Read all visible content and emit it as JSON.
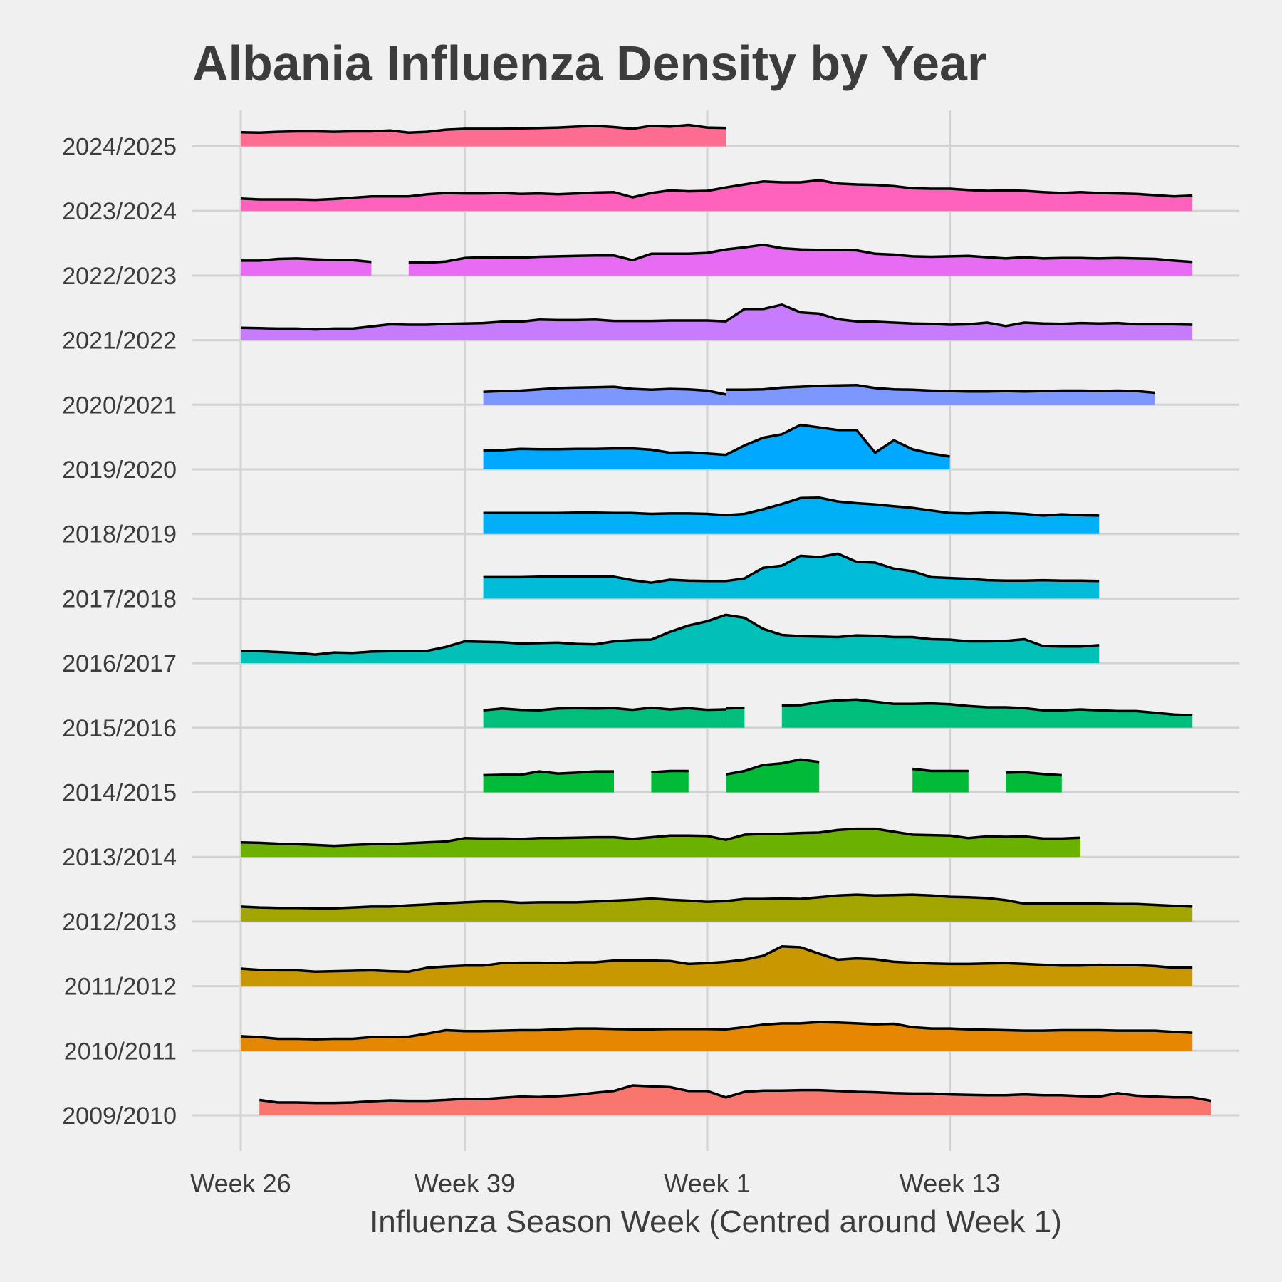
{
  "chart_data": {
    "type": "area",
    "subtype": "ridgeline",
    "title": "Albania Influenza Density by Year",
    "xlabel": "Influenza Season Week (Centred around Week 1)",
    "ylabel": "",
    "x_ticks": [
      {
        "label": "Week 26",
        "index": 0
      },
      {
        "label": "Week 39",
        "index": 12
      },
      {
        "label": "Week 1",
        "index": 25
      },
      {
        "label": "Week 13",
        "index": 38
      }
    ],
    "x_range": [
      0,
      51
    ],
    "grid": true,
    "legend": "none",
    "series": [
      {
        "name": "2009/2010",
        "color": "#f8766d",
        "segments": [
          {
            "start": 1,
            "values": [
              0.36,
              0.3,
              0.3,
              0.29,
              0.29,
              0.3,
              0.33,
              0.35,
              0.34,
              0.34,
              0.36,
              0.39,
              0.38,
              0.41,
              0.44,
              0.43,
              0.45,
              0.48,
              0.53,
              0.57,
              0.7,
              0.68,
              0.66,
              0.57,
              0.57,
              0.42,
              0.55,
              0.58,
              0.58,
              0.59,
              0.59,
              0.57,
              0.55,
              0.54,
              0.52,
              0.51,
              0.51,
              0.49,
              0.48,
              0.47,
              0.47,
              0.49,
              0.47,
              0.47,
              0.45,
              0.44,
              0.52,
              0.46,
              0.44,
              0.42,
              0.42,
              0.34
            ]
          }
        ]
      },
      {
        "name": "2010/2011",
        "color": "#e58700",
        "segments": [
          {
            "start": 0,
            "values": [
              0.34,
              0.32,
              0.28,
              0.28,
              0.27,
              0.28,
              0.28,
              0.32,
              0.32,
              0.33,
              0.4,
              0.48,
              0.46,
              0.46,
              0.47,
              0.48,
              0.48,
              0.5,
              0.52,
              0.52,
              0.51,
              0.5,
              0.5,
              0.51,
              0.51,
              0.51,
              0.5,
              0.55,
              0.61,
              0.64,
              0.64,
              0.67,
              0.66,
              0.64,
              0.62,
              0.63,
              0.55,
              0.52,
              0.52,
              0.5,
              0.49,
              0.48,
              0.47,
              0.47,
              0.48,
              0.48,
              0.48,
              0.47,
              0.47,
              0.47,
              0.44,
              0.42
            ]
          }
        ]
      },
      {
        "name": "2011/2012",
        "color": "#c99800",
        "segments": [
          {
            "start": 0,
            "values": [
              0.41,
              0.38,
              0.37,
              0.37,
              0.34,
              0.35,
              0.36,
              0.37,
              0.35,
              0.34,
              0.43,
              0.46,
              0.48,
              0.48,
              0.54,
              0.55,
              0.55,
              0.54,
              0.56,
              0.56,
              0.6,
              0.6,
              0.6,
              0.59,
              0.52,
              0.54,
              0.57,
              0.62,
              0.71,
              0.93,
              0.91,
              0.76,
              0.62,
              0.65,
              0.63,
              0.57,
              0.55,
              0.53,
              0.52,
              0.52,
              0.53,
              0.54,
              0.52,
              0.5,
              0.48,
              0.48,
              0.5,
              0.49,
              0.49,
              0.47,
              0.43,
              0.43
            ]
          }
        ]
      },
      {
        "name": "2012/2013",
        "color": "#a3a500",
        "segments": [
          {
            "start": 0,
            "values": [
              0.35,
              0.33,
              0.32,
              0.32,
              0.31,
              0.31,
              0.33,
              0.35,
              0.35,
              0.38,
              0.4,
              0.43,
              0.45,
              0.47,
              0.47,
              0.44,
              0.45,
              0.45,
              0.45,
              0.47,
              0.49,
              0.51,
              0.54,
              0.51,
              0.49,
              0.46,
              0.48,
              0.53,
              0.53,
              0.54,
              0.53,
              0.57,
              0.61,
              0.63,
              0.61,
              0.62,
              0.63,
              0.61,
              0.58,
              0.57,
              0.55,
              0.5,
              0.42,
              0.42,
              0.42,
              0.42,
              0.42,
              0.41,
              0.41,
              0.39,
              0.37,
              0.35
            ]
          }
        ]
      },
      {
        "name": "2013/2014",
        "color": "#6bb100",
        "segments": [
          {
            "start": 0,
            "values": [
              0.34,
              0.33,
              0.31,
              0.3,
              0.28,
              0.26,
              0.28,
              0.3,
              0.3,
              0.32,
              0.34,
              0.36,
              0.44,
              0.43,
              0.43,
              0.42,
              0.44,
              0.44,
              0.45,
              0.46,
              0.46,
              0.42,
              0.46,
              0.5,
              0.5,
              0.49,
              0.4,
              0.52,
              0.54,
              0.54,
              0.56,
              0.57,
              0.63,
              0.66,
              0.66,
              0.59,
              0.52,
              0.51,
              0.5,
              0.44,
              0.48,
              0.47,
              0.48,
              0.43,
              0.43,
              0.45
            ]
          }
        ]
      },
      {
        "name": "2014/2015",
        "color": "#00ba38",
        "segments": [
          {
            "start": 13,
            "values": [
              0.4,
              0.41,
              0.41,
              0.49,
              0.44,
              0.46,
              0.49,
              0.49
            ]
          },
          {
            "start": 22,
            "values": [
              0.47,
              0.5,
              0.5
            ]
          },
          {
            "start": 26,
            "values": [
              0.42,
              0.5,
              0.64,
              0.68,
              0.77,
              0.71
            ]
          },
          {
            "start": 36,
            "values": [
              0.55,
              0.5,
              0.5,
              0.5
            ]
          },
          {
            "start": 41,
            "values": [
              0.46,
              0.47,
              0.43,
              0.4
            ]
          }
        ]
      },
      {
        "name": "2015/2016",
        "color": "#00bf7d",
        "segments": [
          {
            "start": 13,
            "values": [
              0.41,
              0.45,
              0.42,
              0.41,
              0.45,
              0.46,
              0.45,
              0.46,
              0.42,
              0.47,
              0.43,
              0.46,
              0.42,
              0.43
            ]
          },
          {
            "start": 26,
            "values": [
              0.45,
              0.47
            ]
          },
          {
            "start": 29,
            "values": [
              0.52,
              0.53,
              0.6,
              0.64,
              0.66,
              0.61,
              0.56,
              0.56,
              0.57,
              0.55,
              0.51,
              0.48,
              0.48,
              0.46,
              0.41,
              0.41,
              0.43,
              0.41,
              0.39,
              0.39,
              0.35,
              0.31,
              0.29
            ]
          }
        ]
      },
      {
        "name": "2016/2017",
        "color": "#00c0b8",
        "segments": [
          {
            "start": 0,
            "values": [
              0.28,
              0.28,
              0.26,
              0.24,
              0.2,
              0.25,
              0.24,
              0.27,
              0.28,
              0.29,
              0.29,
              0.38,
              0.51,
              0.5,
              0.49,
              0.46,
              0.47,
              0.48,
              0.45,
              0.44,
              0.51,
              0.54,
              0.55,
              0.73,
              0.88,
              0.98,
              1.13,
              1.06,
              0.8,
              0.66,
              0.63,
              0.62,
              0.61,
              0.65,
              0.64,
              0.61,
              0.61,
              0.56,
              0.55,
              0.51,
              0.51,
              0.52,
              0.56,
              0.4,
              0.39,
              0.39,
              0.42
            ]
          }
        ]
      },
      {
        "name": "2017/2018",
        "color": "#00bcd8",
        "segments": [
          {
            "start": 13,
            "values": [
              0.5,
              0.5,
              0.5,
              0.51,
              0.51,
              0.51,
              0.51,
              0.51,
              0.43,
              0.37,
              0.44,
              0.42,
              0.41,
              0.41,
              0.47,
              0.72,
              0.77,
              1.0,
              0.97,
              1.05,
              0.86,
              0.84,
              0.7,
              0.64,
              0.5,
              0.48,
              0.46,
              0.43,
              0.42,
              0.42,
              0.43,
              0.42,
              0.42,
              0.41
            ]
          }
        ]
      },
      {
        "name": "2018/2019",
        "color": "#00b0f6",
        "segments": [
          {
            "start": 13,
            "values": [
              0.49,
              0.49,
              0.49,
              0.49,
              0.49,
              0.5,
              0.5,
              0.49,
              0.49,
              0.47,
              0.48,
              0.48,
              0.47,
              0.44,
              0.47,
              0.58,
              0.7,
              0.84,
              0.85,
              0.76,
              0.72,
              0.69,
              0.65,
              0.61,
              0.55,
              0.49,
              0.48,
              0.5,
              0.49,
              0.47,
              0.43,
              0.46,
              0.44,
              0.43
            ]
          }
        ]
      },
      {
        "name": "2019/2020",
        "color": "#00a9ff",
        "segments": [
          {
            "start": 13,
            "values": [
              0.44,
              0.45,
              0.48,
              0.47,
              0.47,
              0.48,
              0.48,
              0.49,
              0.49,
              0.46,
              0.39,
              0.4,
              0.37,
              0.34,
              0.56,
              0.74,
              0.82,
              1.04,
              0.98,
              0.92,
              0.92,
              0.39,
              0.68,
              0.47,
              0.37,
              0.3
            ]
          }
        ]
      },
      {
        "name": "2020/2021",
        "color": "#7c97ff",
        "segments": [
          {
            "start": 13,
            "values": [
              0.3,
              0.32,
              0.33,
              0.36,
              0.39,
              0.4,
              0.41,
              0.42,
              0.37,
              0.35,
              0.37,
              0.36,
              0.33,
              0.24
            ]
          },
          {
            "start": 26,
            "values": [
              0.35,
              0.35,
              0.36,
              0.4,
              0.42,
              0.44,
              0.45,
              0.46,
              0.39,
              0.36,
              0.35,
              0.33,
              0.32,
              0.31,
              0.31,
              0.32,
              0.31,
              0.32,
              0.33,
              0.33,
              0.32,
              0.33,
              0.32,
              0.28
            ]
          }
        ]
      },
      {
        "name": "2021/2022",
        "color": "#c77cff",
        "segments": [
          {
            "start": 0,
            "values": [
              0.29,
              0.28,
              0.27,
              0.27,
              0.25,
              0.27,
              0.27,
              0.32,
              0.37,
              0.36,
              0.36,
              0.38,
              0.39,
              0.4,
              0.43,
              0.43,
              0.48,
              0.47,
              0.47,
              0.48,
              0.45,
              0.45,
              0.45,
              0.46,
              0.46,
              0.46,
              0.44,
              0.73,
              0.73,
              0.83,
              0.65,
              0.62,
              0.49,
              0.44,
              0.43,
              0.41,
              0.39,
              0.38,
              0.36,
              0.37,
              0.41,
              0.33,
              0.41,
              0.39,
              0.38,
              0.4,
              0.39,
              0.4,
              0.37,
              0.37,
              0.37,
              0.36
            ]
          }
        ]
      },
      {
        "name": "2022/2023",
        "color": "#e76bf3",
        "segments": [
          {
            "start": 0,
            "values": [
              0.35,
              0.35,
              0.39,
              0.4,
              0.38,
              0.36,
              0.36,
              0.32
            ]
          },
          {
            "start": 9,
            "values": [
              0.31,
              0.3,
              0.33,
              0.41,
              0.43,
              0.42,
              0.42,
              0.44,
              0.45,
              0.46,
              0.47,
              0.47,
              0.36,
              0.51,
              0.51,
              0.51,
              0.53,
              0.61,
              0.66,
              0.72,
              0.64,
              0.61,
              0.6,
              0.6,
              0.59,
              0.51,
              0.49,
              0.45,
              0.44,
              0.45,
              0.46,
              0.43,
              0.4,
              0.43,
              0.4,
              0.41,
              0.41,
              0.4,
              0.41,
              0.4,
              0.39,
              0.35,
              0.32
            ]
          }
        ]
      },
      {
        "name": "2023/2024",
        "color": "#ff62bc",
        "segments": [
          {
            "start": 0,
            "values": [
              0.29,
              0.27,
              0.27,
              0.27,
              0.26,
              0.28,
              0.31,
              0.34,
              0.34,
              0.34,
              0.39,
              0.42,
              0.41,
              0.41,
              0.42,
              0.4,
              0.41,
              0.39,
              0.41,
              0.43,
              0.44,
              0.32,
              0.42,
              0.48,
              0.46,
              0.47,
              0.55,
              0.62,
              0.69,
              0.67,
              0.67,
              0.72,
              0.64,
              0.62,
              0.61,
              0.58,
              0.53,
              0.52,
              0.52,
              0.49,
              0.47,
              0.48,
              0.47,
              0.44,
              0.42,
              0.44,
              0.42,
              0.41,
              0.4,
              0.37,
              0.34,
              0.36
            ]
          }
        ]
      },
      {
        "name": "2024/2025",
        "color": "#ff6c91",
        "segments": [
          {
            "start": 0,
            "values": [
              0.33,
              0.32,
              0.34,
              0.35,
              0.35,
              0.34,
              0.35,
              0.35,
              0.37,
              0.32,
              0.34,
              0.39,
              0.41,
              0.41,
              0.41,
              0.42,
              0.43,
              0.44,
              0.46,
              0.48,
              0.45,
              0.41,
              0.48,
              0.46,
              0.5,
              0.44,
              0.43
            ]
          }
        ]
      }
    ]
  }
}
